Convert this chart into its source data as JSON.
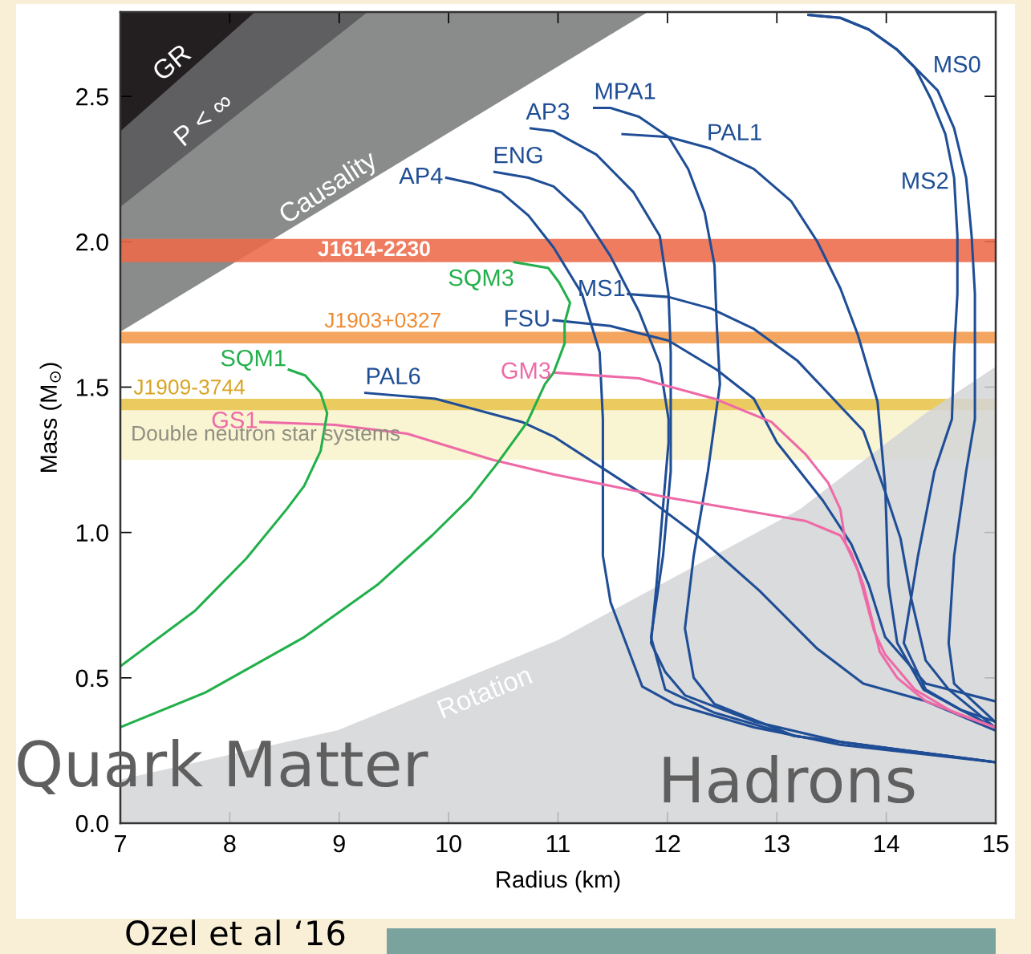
{
  "chart_data": {
    "type": "line",
    "xlabel": "Radius (km)",
    "ylabel": "Mass (M$_{⊙}$)",
    "xlim": [
      7,
      15
    ],
    "ylim": [
      0,
      2.79
    ],
    "xticks": [
      7,
      8,
      9,
      10,
      11,
      12,
      13,
      14,
      15
    ],
    "yticks": [
      {
        "value": 0,
        "label": "0.0"
      },
      {
        "value": 0.5,
        "label": "0.5"
      },
      {
        "value": 1,
        "label": "1.0"
      },
      {
        "value": 1.5,
        "label": "1.5"
      },
      {
        "value": 2,
        "label": "2.0"
      },
      {
        "value": 2.5,
        "label": "2.5"
      }
    ],
    "grid": false,
    "legend": false,
    "marker": "none",
    "line_style": "solid",
    "bands": [
      {
        "axis": "y",
        "from": 1.93,
        "to": 2.01,
        "label": "J1614-2230",
        "color": "#ee6a4a"
      },
      {
        "axis": "y",
        "from": 1.65,
        "to": 1.69,
        "label": "J1903+0327",
        "color": "#f29a4a"
      },
      {
        "axis": "y",
        "from": 1.42,
        "to": 1.46,
        "label": "J1909-3744",
        "color": "#e8c44a"
      },
      {
        "axis": "y",
        "from": 1.25,
        "to": 1.42,
        "label": "Double neutron star systems",
        "color": "#f8f3cc"
      }
    ],
    "series": [
      {
        "type": "area",
        "color": "#8a8c8c",
        "x": [
          7,
          11.82
        ],
        "values": [
          1.69,
          2.79
        ]
      },
      {
        "type": "area",
        "color": "#5f5e60",
        "x": [
          7,
          9.26
        ],
        "values": [
          2.12,
          2.79
        ]
      },
      {
        "type": "area",
        "color": "#231f20",
        "x": [
          7,
          8.23
        ],
        "values": [
          2.38,
          2.79
        ]
      },
      {
        "type": "area",
        "color": "#d3d5d7",
        "x": [
          7,
          8.99,
          11.0,
          13.21,
          14.36,
          15
        ],
        "values": [
          0.15,
          0.32,
          0.63,
          1.08,
          1.41,
          1.57
        ]
      },
      {
        "name": "AP4",
        "color": "#1f4e96",
        "x": [
          9.98,
          10.22,
          10.48,
          10.73,
          10.96,
          11.22,
          11.38,
          11.41,
          11.41,
          11.41,
          11.48,
          11.64,
          11.77,
          12.06,
          12.79,
          13.58,
          14.99
        ],
        "values": [
          2.22,
          2.2,
          2.17,
          2.09,
          1.98,
          1.82,
          1.62,
          1.39,
          1.21,
          0.92,
          0.76,
          0.6,
          0.47,
          0.41,
          0.33,
          0.27,
          0.21
        ]
      },
      {
        "name": "ENG",
        "color": "#1f4e96",
        "x": [
          10.42,
          10.73,
          10.96,
          11.22,
          11.48,
          11.74,
          11.93,
          12.01,
          12.01,
          11.96,
          11.9,
          11.85,
          11.98,
          12.16,
          12.79,
          13.58,
          14.99
        ],
        "values": [
          2.24,
          2.22,
          2.19,
          2.1,
          1.95,
          1.76,
          1.58,
          1.39,
          1.31,
          1.09,
          0.82,
          0.62,
          0.52,
          0.44,
          0.35,
          0.28,
          0.21
        ]
      },
      {
        "name": "AP3",
        "color": "#1f4e96",
        "x": [
          10.75,
          10.96,
          11.35,
          11.69,
          11.93,
          12.01,
          12.03,
          12.03,
          12.03,
          11.96,
          11.85,
          11.98,
          12.43,
          13.16,
          14.99
        ],
        "values": [
          2.39,
          2.38,
          2.3,
          2.17,
          2.02,
          1.82,
          1.62,
          1.39,
          1.21,
          0.92,
          0.64,
          0.46,
          0.38,
          0.3,
          0.21
        ]
      },
      {
        "name": "MPA1",
        "color": "#1f4e96",
        "x": [
          11.33,
          11.48,
          11.74,
          12.01,
          12.19,
          12.34,
          12.43,
          12.45,
          12.48,
          12.37,
          12.24,
          12.16,
          12.24,
          12.43,
          13.16,
          14.99
        ],
        "values": [
          2.46,
          2.46,
          2.43,
          2.36,
          2.25,
          2.1,
          1.92,
          1.72,
          1.51,
          1.21,
          0.92,
          0.67,
          0.5,
          0.41,
          0.3,
          0.21
        ]
      },
      {
        "name": "PAL1",
        "color": "#1f4e96",
        "x": [
          11.59,
          12.01,
          12.4,
          12.79,
          13.13,
          13.37,
          13.58,
          13.74,
          13.92,
          13.99,
          14.02,
          14.1,
          14.34,
          14.68,
          14.99
        ],
        "values": [
          2.37,
          2.36,
          2.32,
          2.25,
          2.14,
          2.0,
          1.84,
          1.68,
          1.45,
          1.16,
          0.82,
          0.62,
          0.46,
          0.39,
          0.35
        ]
      },
      {
        "name": "MS0",
        "color": "#1f4e96",
        "x": [
          13.29,
          13.58,
          13.84,
          14.1,
          14.26,
          14.47,
          14.62,
          14.73,
          14.78,
          14.81,
          14.81,
          14.73,
          14.62,
          14.57,
          14.62,
          14.99
        ],
        "values": [
          2.78,
          2.77,
          2.73,
          2.66,
          2.6,
          2.52,
          2.39,
          2.22,
          2.02,
          1.82,
          1.39,
          1.21,
          0.92,
          0.62,
          0.48,
          0.35
        ]
      },
      {
        "name": "MS2",
        "color": "#1f4e96",
        "x": [
          13.29,
          13.58,
          13.84,
          14.1,
          14.26,
          14.41,
          14.54,
          14.62,
          14.65,
          14.65,
          14.62,
          14.6,
          14.44,
          14.29,
          14.16,
          14.36,
          14.68,
          14.99
        ],
        "values": [
          2.78,
          2.77,
          2.73,
          2.66,
          2.6,
          2.49,
          2.37,
          2.22,
          2.02,
          1.82,
          1.62,
          1.39,
          1.21,
          0.92,
          0.62,
          0.46,
          0.39,
          0.33
        ]
      },
      {
        "name": "MS1",
        "color": "#1f4e96",
        "x": [
          11.64,
          12.01,
          12.4,
          12.79,
          13.19,
          13.44,
          13.79,
          13.99,
          14.13,
          14.23,
          14.36,
          14.57,
          14.99
        ],
        "values": [
          1.82,
          1.81,
          1.77,
          1.7,
          1.59,
          1.49,
          1.35,
          1.14,
          0.98,
          0.77,
          0.56,
          0.46,
          0.33
        ]
      },
      {
        "name": "FSU",
        "color": "#1f4e96",
        "x": [
          10.96,
          11.48,
          12.01,
          12.45,
          12.79,
          13.0,
          13.42,
          13.68,
          13.84,
          13.99,
          14.36,
          14.99
        ],
        "values": [
          1.73,
          1.71,
          1.66,
          1.56,
          1.46,
          1.31,
          1.11,
          0.96,
          0.82,
          0.64,
          0.48,
          0.42
        ]
      },
      {
        "name": "PAL6",
        "color": "#1f4e96",
        "x": [
          9.24,
          9.88,
          10.67,
          10.96,
          11.74,
          12.27,
          12.84,
          13.37,
          13.79,
          14.36,
          14.99
        ],
        "values": [
          1.48,
          1.46,
          1.38,
          1.33,
          1.14,
          0.99,
          0.8,
          0.6,
          0.48,
          0.42,
          0.32
        ]
      },
      {
        "name": "GM3",
        "color": "#ee6aa7",
        "x": [
          10.96,
          11.74,
          12.43,
          12.95,
          13.26,
          13.47,
          13.58,
          13.63,
          13.74,
          13.89,
          13.99,
          14.26,
          14.62,
          14.99
        ],
        "values": [
          1.55,
          1.53,
          1.46,
          1.38,
          1.27,
          1.17,
          1.08,
          0.96,
          0.87,
          0.66,
          0.58,
          0.46,
          0.38,
          0.33
        ]
      },
      {
        "name": "GS1",
        "color": "#ee6aa7",
        "x": [
          8.28,
          8.96,
          9.62,
          10.4,
          10.96,
          12.01,
          13.26,
          13.58,
          13.68,
          13.79,
          13.89,
          13.94,
          14.1,
          14.36,
          14.99
        ],
        "values": [
          1.38,
          1.37,
          1.34,
          1.25,
          1.2,
          1.12,
          1.04,
          0.99,
          0.93,
          0.82,
          0.67,
          0.59,
          0.5,
          0.42,
          0.33
        ]
      },
      {
        "name": "SQM1",
        "color": "#22b04b",
        "x": [
          8.54,
          8.69,
          8.83,
          8.89,
          8.83,
          8.68,
          8.52,
          8.15,
          7.68,
          7.0
        ],
        "values": [
          1.56,
          1.54,
          1.48,
          1.41,
          1.28,
          1.16,
          1.08,
          0.91,
          0.73,
          0.54
        ]
      },
      {
        "name": "SQM3",
        "color": "#22b04b",
        "x": [
          10.6,
          10.91,
          11.01,
          11.11,
          11.06,
          11.06,
          10.96,
          10.88,
          10.72,
          10.45,
          10.2,
          9.85,
          9.35,
          8.68,
          7.78,
          7.0
        ],
        "values": [
          1.93,
          1.91,
          1.86,
          1.79,
          1.72,
          1.65,
          1.55,
          1.51,
          1.38,
          1.24,
          1.12,
          0.99,
          0.82,
          0.64,
          0.45,
          0.33
        ]
      }
    ],
    "annotations": [
      "GR",
      "P < ∞",
      "Causality",
      "Rotation",
      "Quark Matter",
      "Hadrons",
      "Ozel et al ‘16"
    ]
  }
}
